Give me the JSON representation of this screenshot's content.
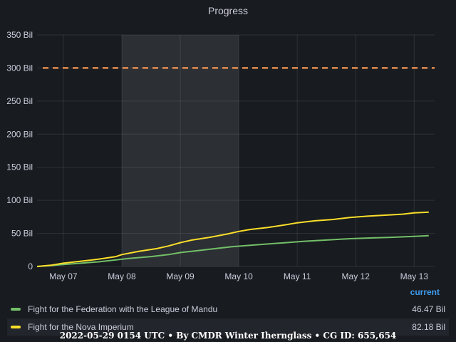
{
  "chart_data": {
    "type": "line",
    "title": "Progress",
    "x_tick_labels": [
      "May 07",
      "May 08",
      "May 09",
      "May 10",
      "May 11",
      "May 12",
      "May 13"
    ],
    "x_tick_days": [
      7,
      8,
      9,
      10,
      11,
      12,
      13
    ],
    "xlim": [
      6.55,
      13.35
    ],
    "ylim": [
      0,
      350
    ],
    "y_ticks": [
      0,
      50,
      100,
      150,
      200,
      250,
      300,
      350
    ],
    "y_tick_labels": [
      "0",
      "50 Bil",
      "100 Bil",
      "150 Bil",
      "200 Bil",
      "250 Bil",
      "300 Bil",
      "350 Bil"
    ],
    "y_unit": "Bil",
    "grid": true,
    "highlight_region": [
      8.0,
      10.0
    ],
    "threshold": {
      "value": 300,
      "color": "#e58c4e",
      "style": "dashed"
    },
    "series": [
      {
        "name": "Fight for the Federation with the League of Mandu",
        "color": "#73bf69",
        "current": "46.47 Bil",
        "x": [
          6.55,
          6.8,
          7.0,
          7.3,
          7.6,
          7.9,
          8.1,
          8.5,
          8.8,
          9.0,
          9.3,
          9.6,
          9.9,
          10.2,
          10.5,
          10.8,
          11.1,
          11.5,
          11.9,
          12.2,
          12.6,
          13.0,
          13.25
        ],
        "y": [
          0,
          1.5,
          3,
          5,
          7,
          10,
          12,
          15,
          18,
          21,
          24,
          27,
          30,
          32,
          34,
          36,
          38,
          40,
          42,
          43,
          44,
          45.5,
          46.47
        ]
      },
      {
        "name": "Fight for the Nova Imperium",
        "color": "#fade2a",
        "current": "82.18 Bil",
        "x": [
          6.55,
          6.8,
          7.0,
          7.3,
          7.6,
          7.9,
          8.0,
          8.3,
          8.6,
          8.8,
          9.0,
          9.2,
          9.5,
          9.8,
          10.0,
          10.2,
          10.5,
          10.8,
          11.0,
          11.3,
          11.6,
          11.9,
          12.2,
          12.5,
          12.8,
          13.0,
          13.25
        ],
        "y": [
          0,
          2,
          5,
          8,
          11,
          15,
          18,
          23,
          27,
          31,
          36,
          40,
          44,
          49,
          53,
          56,
          59,
          63,
          66,
          69,
          71,
          74,
          76,
          77.5,
          79,
          81,
          82.18
        ]
      }
    ]
  },
  "legend": {
    "header": "current"
  },
  "footer": "2022-05-29 0154 UTC • By CMDR Winter Iherngla­ss • CG ID: 655,654"
}
